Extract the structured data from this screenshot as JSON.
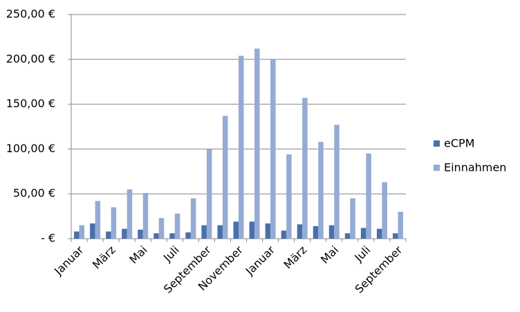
{
  "chart_data": {
    "type": "bar",
    "categories": [
      "Januar",
      null,
      "März",
      null,
      "Mai",
      null,
      "Juli",
      null,
      "September",
      null,
      "November",
      null,
      "Januar",
      null,
      "März",
      null,
      "Mai",
      null,
      "Juli",
      null,
      "September"
    ],
    "series": [
      {
        "name": "eCPM",
        "color": "#4a70aa",
        "values": [
          8,
          17,
          8,
          11,
          10,
          6,
          6,
          7,
          15,
          15,
          19,
          19,
          17,
          9,
          16,
          14,
          15,
          6,
          12,
          11,
          6
        ]
      },
      {
        "name": "Einnahmen",
        "color": "#95abd4",
        "values": [
          15,
          42,
          35,
          55,
          51,
          23,
          28,
          45,
          100,
          137,
          204,
          212,
          200,
          94,
          157,
          108,
          127,
          45,
          95,
          63,
          30
        ]
      }
    ],
    "ylim": [
      0,
      250
    ],
    "yticks": [
      {
        "value": 0,
        "label": "-   €"
      },
      {
        "value": 50,
        "label": "50,00 €"
      },
      {
        "value": 100,
        "label": "100,00 €"
      },
      {
        "value": 150,
        "label": "150,00 €"
      },
      {
        "value": 200,
        "label": "200,00 €"
      },
      {
        "value": 250,
        "label": "250,00 €"
      }
    ],
    "grid": true,
    "legend": "right"
  }
}
